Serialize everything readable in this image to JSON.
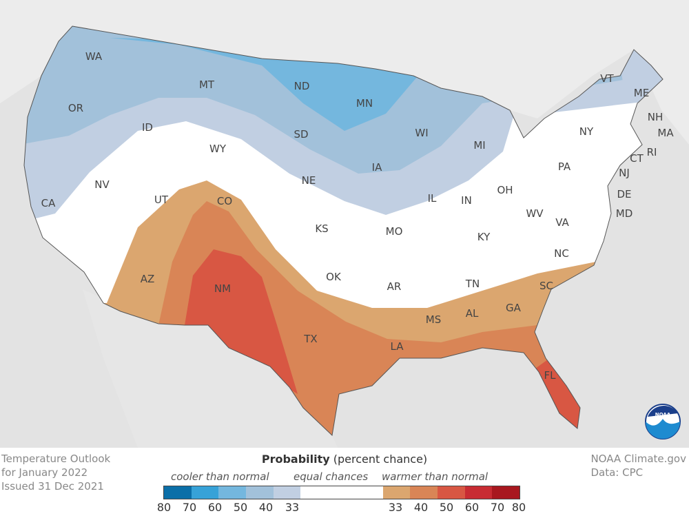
{
  "map": {
    "states": [
      {
        "abbr": "WA"
      },
      {
        "abbr": "OR"
      },
      {
        "abbr": "CA"
      },
      {
        "abbr": "ID"
      },
      {
        "abbr": "NV"
      },
      {
        "abbr": "MT"
      },
      {
        "abbr": "WY"
      },
      {
        "abbr": "UT"
      },
      {
        "abbr": "AZ"
      },
      {
        "abbr": "CO"
      },
      {
        "abbr": "NM"
      },
      {
        "abbr": "ND"
      },
      {
        "abbr": "SD"
      },
      {
        "abbr": "NE"
      },
      {
        "abbr": "KS"
      },
      {
        "abbr": "OK"
      },
      {
        "abbr": "TX"
      },
      {
        "abbr": "MN"
      },
      {
        "abbr": "IA"
      },
      {
        "abbr": "MO"
      },
      {
        "abbr": "AR"
      },
      {
        "abbr": "LA"
      },
      {
        "abbr": "WI"
      },
      {
        "abbr": "IL"
      },
      {
        "abbr": "MI"
      },
      {
        "abbr": "IN"
      },
      {
        "abbr": "OH"
      },
      {
        "abbr": "KY"
      },
      {
        "abbr": "TN"
      },
      {
        "abbr": "MS"
      },
      {
        "abbr": "AL"
      },
      {
        "abbr": "GA"
      },
      {
        "abbr": "FL"
      },
      {
        "abbr": "SC"
      },
      {
        "abbr": "NC"
      },
      {
        "abbr": "VA"
      },
      {
        "abbr": "WV"
      },
      {
        "abbr": "PA"
      },
      {
        "abbr": "NY"
      },
      {
        "abbr": "VT"
      },
      {
        "abbr": "NH"
      },
      {
        "abbr": "ME"
      },
      {
        "abbr": "MA"
      },
      {
        "abbr": "RI"
      },
      {
        "abbr": "CT"
      },
      {
        "abbr": "NJ"
      },
      {
        "abbr": "DE"
      },
      {
        "abbr": "MD"
      }
    ],
    "logo_text": "NOAA"
  },
  "info": {
    "line1": "Temperature Outlook",
    "line2": "for January 2022",
    "line3": "Issued 31 Dec 2021"
  },
  "credit": {
    "line1": "NOAA Climate.gov",
    "line2": "Data: CPC"
  },
  "legend": {
    "title_bold": "Probability",
    "title_rest": "(percent chance)",
    "cooler": "cooler than normal",
    "equal": "equal chances",
    "warmer": "warmer than normal",
    "colors": [
      "#0b6fa8",
      "#37a2d8",
      "#74b7de",
      "#a2c1da",
      "#c1cfe2",
      "#ffffff",
      "#dba66f",
      "#d98556",
      "#d85743",
      "#c82c33",
      "#a8181f"
    ],
    "ticks": [
      "80",
      "70",
      "60",
      "50",
      "40",
      "33",
      "33",
      "40",
      "50",
      "60",
      "70",
      "80"
    ]
  }
}
